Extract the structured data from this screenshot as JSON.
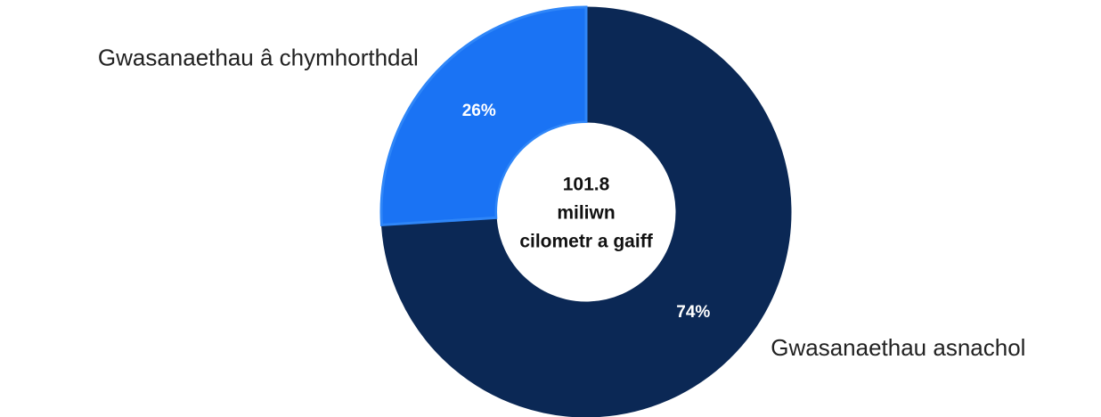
{
  "chart_data": {
    "type": "donut",
    "categories": [
      "Gwasanaethau asnachol",
      "Gwasanaethau â chymhorthdal"
    ],
    "values": [
      74,
      26
    ],
    "value_labels": [
      "74%",
      "26%"
    ],
    "colors": [
      "#0b2855",
      "#1a73f4"
    ],
    "center_text": [
      "101.8",
      "miliwn",
      "cilometr a gaiff"
    ]
  }
}
